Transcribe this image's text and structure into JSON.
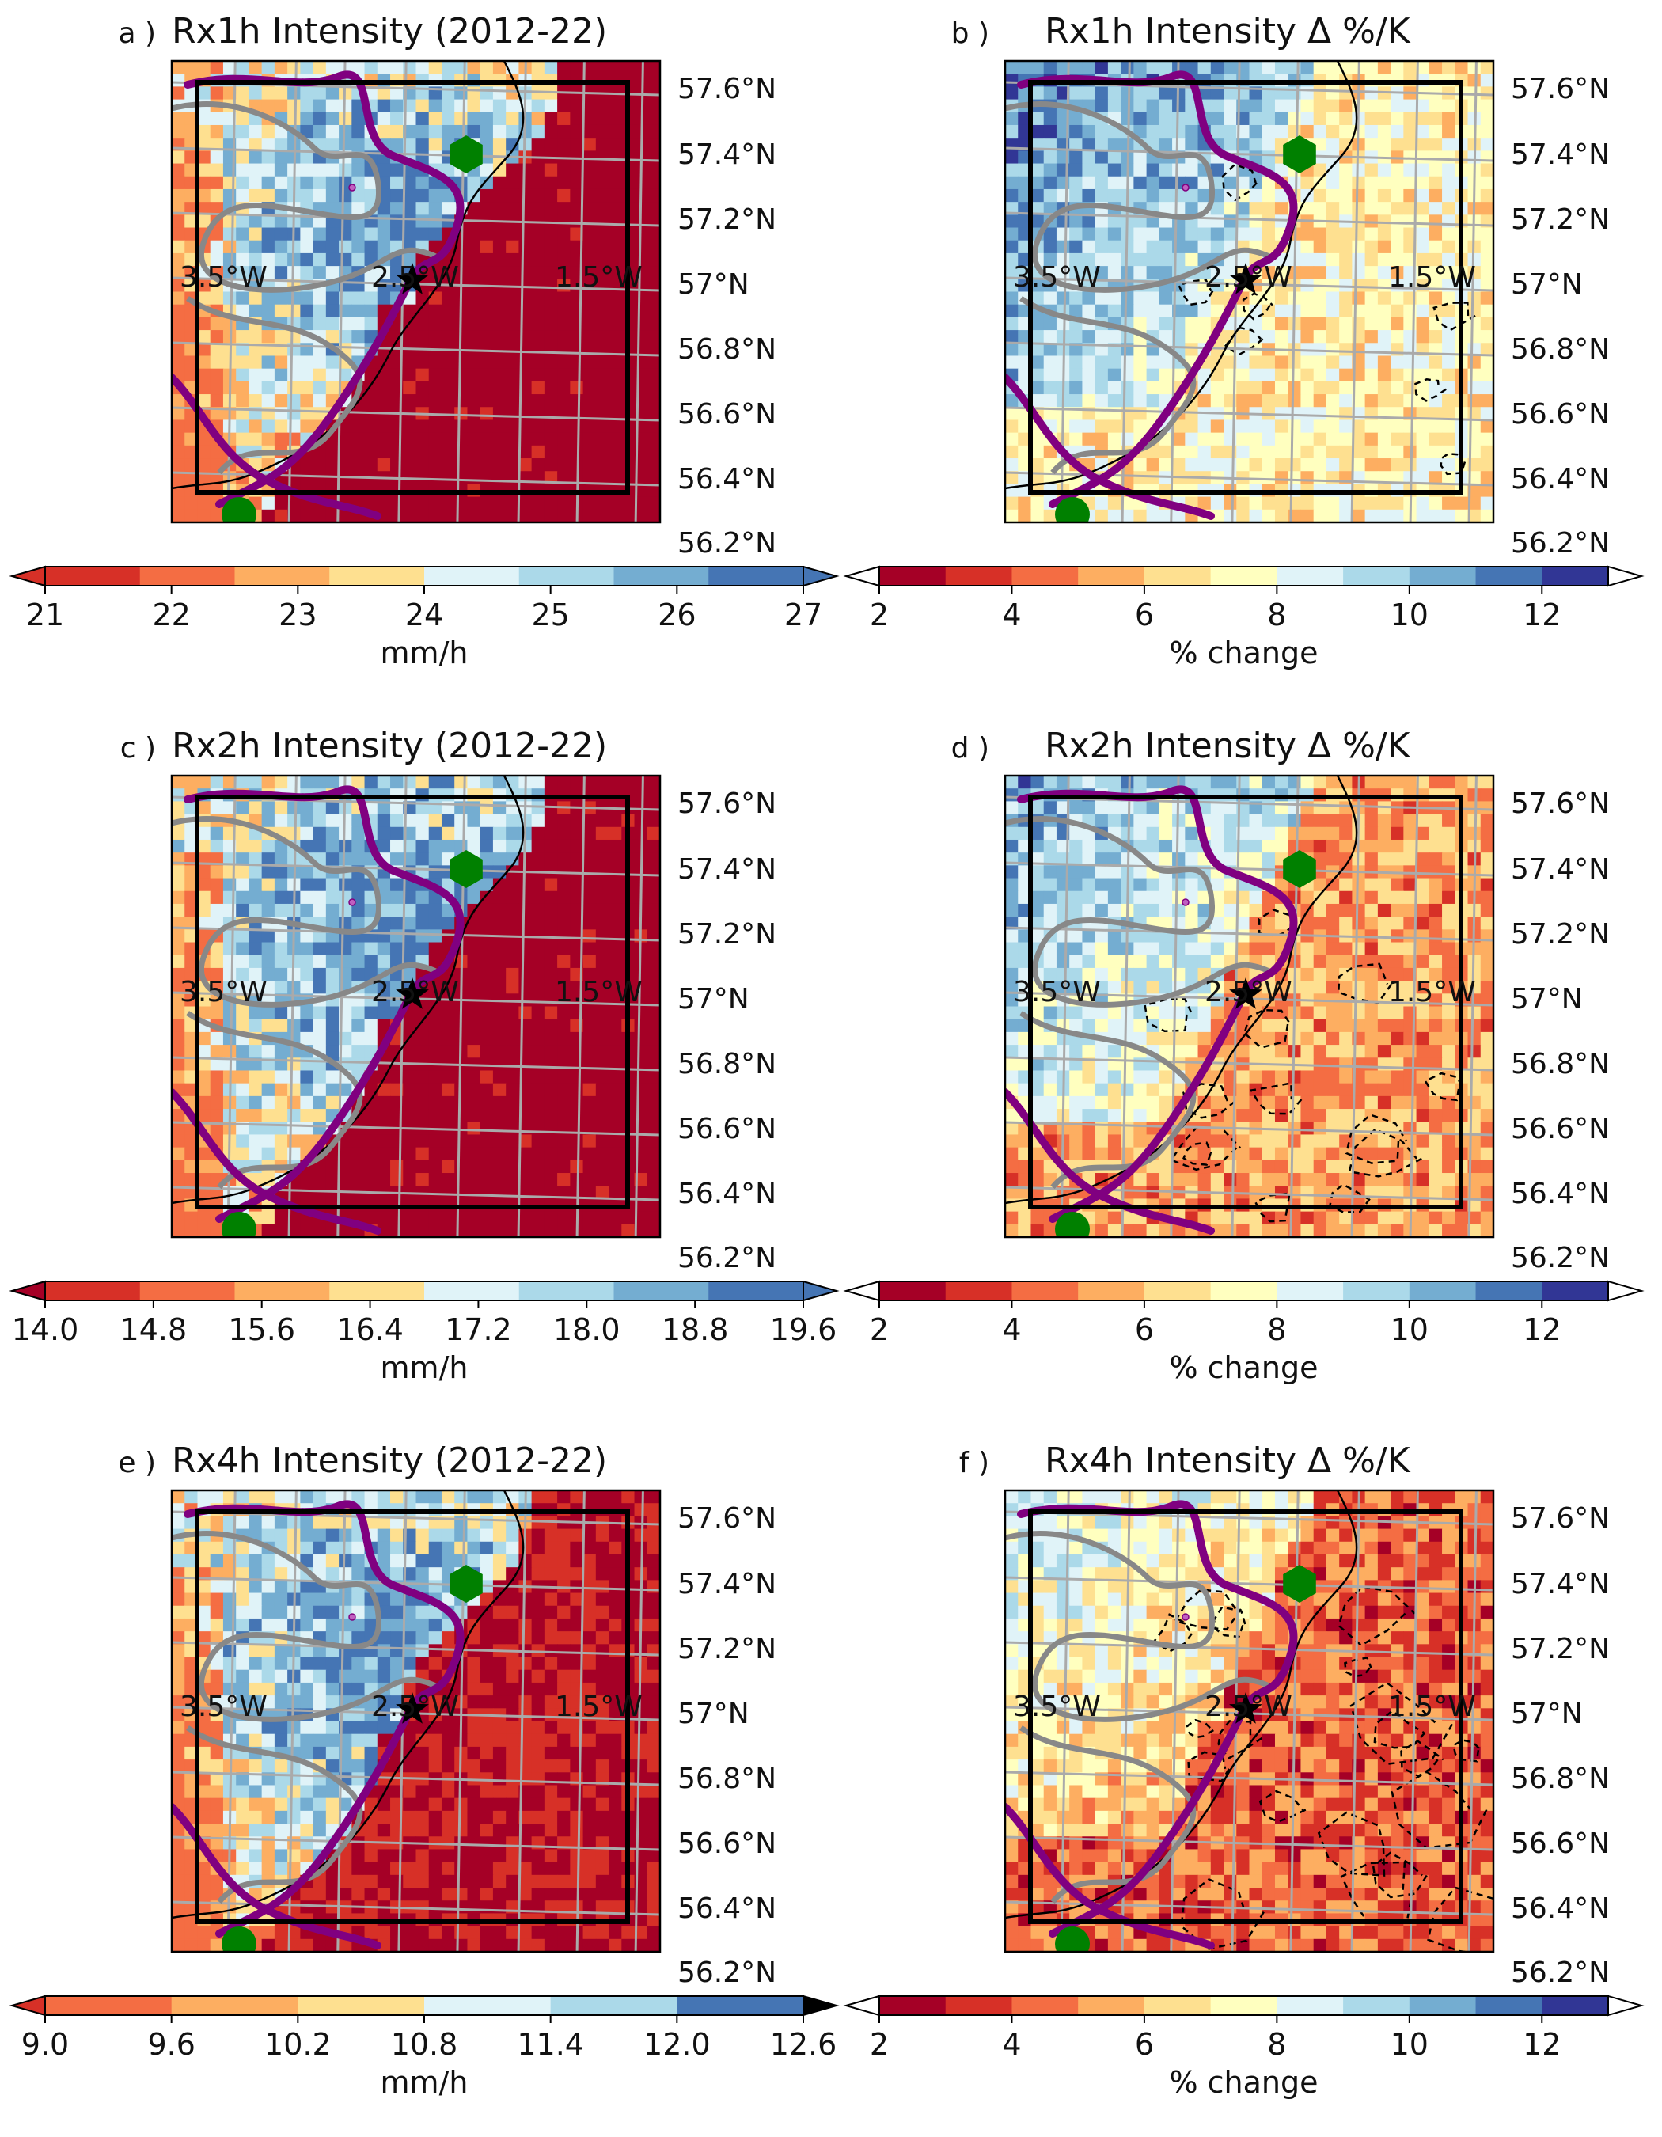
{
  "panels": [
    {
      "letter": "a )",
      "title": "Rx1h Intensity (2012-22)",
      "kind": "intensity",
      "seed": 11,
      "east_threshold": 0.16,
      "east_fraction": 0.97,
      "west_blue": 0.55
    },
    {
      "letter": "b )",
      "title": "Rx1h Intensity Δ %/K",
      "kind": "change",
      "seed": 21,
      "east_mean": 7.2,
      "west_mean": 9.6,
      "dashed": 0.15
    },
    {
      "letter": "c )",
      "title": "Rx2h Intensity (2012-22)",
      "kind": "intensity",
      "seed": 31,
      "east_threshold": 0.14,
      "east_fraction": 0.94,
      "west_blue": 0.45
    },
    {
      "letter": "d )",
      "title": "Rx2h Intensity Δ %/K",
      "kind": "change",
      "seed": 41,
      "east_mean": 5.4,
      "west_mean": 8.6,
      "dashed": 0.45
    },
    {
      "letter": "e )",
      "title": "Rx4h Intensity (2012-22)",
      "kind": "intensity",
      "seed": 51,
      "east_threshold": 0.1,
      "east_fraction": 0.55,
      "west_blue": 0.5
    },
    {
      "letter": "f )",
      "title": "Rx4h Intensity Δ %/K",
      "kind": "change",
      "seed": 61,
      "east_mean": 4.3,
      "west_mean": 6.9,
      "dashed": 0.75
    }
  ],
  "lat_labels": [
    "57.6°N",
    "57.4°N",
    "57.2°N",
    "57°N",
    "56.8°N",
    "56.6°N",
    "56.4°N",
    "56.2°N"
  ],
  "lon_labels": [
    "3.5°W",
    "2.5°W",
    "1.5°W"
  ],
  "colorbars": [
    {
      "ticks": [
        "21",
        "22",
        "23",
        "24",
        "25",
        "26",
        "27"
      ],
      "label": "mm/h",
      "colors": [
        "#d73027",
        "#f46d43",
        "#fdae61",
        "#fee090",
        "#e0f3f8",
        "#abd9e9",
        "#74add1",
        "#4575b4"
      ],
      "extend_colors": [
        "#d73027",
        "#4575b4"
      ]
    },
    {
      "ticks": [
        "2",
        "4",
        "6",
        "8",
        "10",
        "12"
      ],
      "label": "% change",
      "colors": [
        "#a50026",
        "#d73027",
        "#f46d43",
        "#fdae61",
        "#fee090",
        "#ffffbf",
        "#e0f3f8",
        "#abd9e9",
        "#74add1",
        "#4575b4",
        "#313695"
      ],
      "extend_colors": [
        "#ffffff",
        "#ffffff"
      ]
    },
    {
      "ticks": [
        "14.0",
        "14.8",
        "15.6",
        "16.4",
        "17.2",
        "18.0",
        "18.8",
        "19.6"
      ],
      "label": "mm/h",
      "colors": [
        "#d73027",
        "#f46d43",
        "#fdae61",
        "#fee090",
        "#e0f3f8",
        "#abd9e9",
        "#74add1",
        "#4575b4"
      ],
      "extend_colors": [
        "#a50026",
        "#4575b4"
      ]
    },
    {
      "ticks": [
        "2",
        "4",
        "6",
        "8",
        "10",
        "12"
      ],
      "label": "% change",
      "colors": [
        "#a50026",
        "#d73027",
        "#f46d43",
        "#fdae61",
        "#fee090",
        "#ffffbf",
        "#e0f3f8",
        "#abd9e9",
        "#74add1",
        "#4575b4",
        "#313695"
      ],
      "extend_colors": [
        "#ffffff",
        "#ffffff"
      ]
    },
    {
      "ticks": [
        "9.0",
        "9.6",
        "10.2",
        "10.8",
        "11.4",
        "12.0",
        "12.6"
      ],
      "label": "mm/h",
      "colors": [
        "#f46d43",
        "#fdae61",
        "#fee090",
        "#e0f3f8",
        "#abd9e9",
        "#4575b4"
      ],
      "extend_colors": [
        "#d73027",
        "#000000"
      ]
    },
    {
      "ticks": [
        "2",
        "4",
        "6",
        "8",
        "10",
        "12"
      ],
      "label": "% change",
      "colors": [
        "#a50026",
        "#d73027",
        "#f46d43",
        "#fdae61",
        "#fee090",
        "#ffffbf",
        "#e0f3f8",
        "#abd9e9",
        "#74add1",
        "#4575b4",
        "#313695"
      ],
      "extend_colors": [
        "#ffffff",
        "#ffffff"
      ]
    }
  ],
  "colors": {
    "river": "#800080",
    "catchment": "#888888",
    "coast": "#000000",
    "grid": "#aaaaaa",
    "marker_green": "#008000",
    "star": "#000000"
  },
  "marker_icons": [
    "hexagon-marker-icon",
    "star-marker-icon",
    "small-marker-icon"
  ]
}
